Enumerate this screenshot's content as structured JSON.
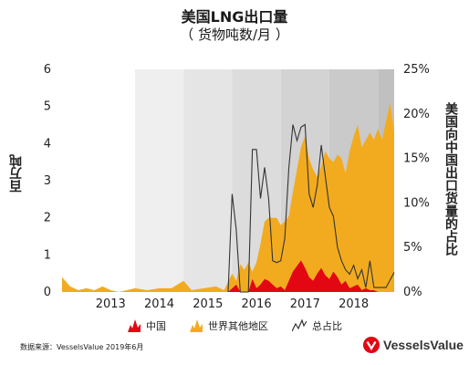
{
  "title": "美国LNG出口量",
  "subtitle": "（ 货物吨数/月 ）",
  "ylabel_left": "百万吨",
  "ylabel_right": "美国向中国出口货量的占比",
  "legend": [
    {
      "label": "中国",
      "color": "#e30613"
    },
    {
      "label": "世界其他地区",
      "color": "#f2ab1f"
    },
    {
      "label": "总占比",
      "color": "#333333"
    }
  ],
  "source": "数据来源：VesselsValue 2019年6月",
  "brand": "VesselsValue",
  "chart_data": {
    "type": "area",
    "x_ticks": [
      "2013",
      "2014",
      "2015",
      "2016",
      "2017",
      "2018"
    ],
    "y_ticks_left": [
      "0",
      "1",
      "2",
      "3",
      "4",
      "5",
      "6"
    ],
    "y_ticks_right": [
      "0%",
      "5%",
      "10%",
      "15%",
      "20%",
      "25%"
    ],
    "ylim_left": [
      0,
      6
    ],
    "ylim_right": [
      0,
      25
    ],
    "x_start": "2012-07",
    "x_end": "2019-05",
    "shaded_years": [
      "2014",
      "2015",
      "2016",
      "2017",
      "2018",
      "2019"
    ],
    "series": [
      {
        "name": "世界其他地区",
        "kind": "area",
        "color": "#f2ab1f",
        "values": [
          {
            "x": "2012-07",
            "y": 0.4
          },
          {
            "x": "2012-09",
            "y": 0.15
          },
          {
            "x": "2012-11",
            "y": 0.05
          },
          {
            "x": "2013-01",
            "y": 0.1
          },
          {
            "x": "2013-03",
            "y": 0.05
          },
          {
            "x": "2013-05",
            "y": 0.15
          },
          {
            "x": "2013-07",
            "y": 0.05
          },
          {
            "x": "2013-09",
            "y": 0.0
          },
          {
            "x": "2013-11",
            "y": 0.05
          },
          {
            "x": "2014-01",
            "y": 0.1
          },
          {
            "x": "2014-04",
            "y": 0.05
          },
          {
            "x": "2014-07",
            "y": 0.1
          },
          {
            "x": "2014-10",
            "y": 0.1
          },
          {
            "x": "2015-01",
            "y": 0.3
          },
          {
            "x": "2015-03",
            "y": 0.05
          },
          {
            "x": "2015-06",
            "y": 0.1
          },
          {
            "x": "2015-09",
            "y": 0.15
          },
          {
            "x": "2015-11",
            "y": 0.05
          },
          {
            "x": "2016-01",
            "y": 0.5
          },
          {
            "x": "2016-02",
            "y": 0.3
          },
          {
            "x": "2016-03",
            "y": 0.75
          },
          {
            "x": "2016-04",
            "y": 0.6
          },
          {
            "x": "2016-05",
            "y": 0.8
          },
          {
            "x": "2016-06",
            "y": 0.55
          },
          {
            "x": "2016-07",
            "y": 0.8
          },
          {
            "x": "2016-08",
            "y": 1.3
          },
          {
            "x": "2016-09",
            "y": 1.9
          },
          {
            "x": "2016-10",
            "y": 2.0
          },
          {
            "x": "2016-11",
            "y": 2.0
          },
          {
            "x": "2016-12",
            "y": 2.0
          },
          {
            "x": "2017-01",
            "y": 1.8
          },
          {
            "x": "2017-02",
            "y": 1.9
          },
          {
            "x": "2017-03",
            "y": 2.05
          },
          {
            "x": "2017-04",
            "y": 2.7
          },
          {
            "x": "2017-05",
            "y": 3.3
          },
          {
            "x": "2017-06",
            "y": 3.9
          },
          {
            "x": "2017-07",
            "y": 4.2
          },
          {
            "x": "2017-08",
            "y": 3.6
          },
          {
            "x": "2017-09",
            "y": 3.3
          },
          {
            "x": "2017-10",
            "y": 3.1
          },
          {
            "x": "2017-11",
            "y": 3.4
          },
          {
            "x": "2017-12",
            "y": 3.8
          },
          {
            "x": "2018-01",
            "y": 3.6
          },
          {
            "x": "2018-02",
            "y": 3.5
          },
          {
            "x": "2018-03",
            "y": 3.7
          },
          {
            "x": "2018-04",
            "y": 3.6
          },
          {
            "x": "2018-05",
            "y": 3.2
          },
          {
            "x": "2018-06",
            "y": 3.8
          },
          {
            "x": "2018-07",
            "y": 4.2
          },
          {
            "x": "2018-08",
            "y": 4.5
          },
          {
            "x": "2018-09",
            "y": 3.9
          },
          {
            "x": "2018-10",
            "y": 4.1
          },
          {
            "x": "2018-11",
            "y": 4.3
          },
          {
            "x": "2018-12",
            "y": 4.1
          },
          {
            "x": "2019-01",
            "y": 4.4
          },
          {
            "x": "2019-02",
            "y": 4.1
          },
          {
            "x": "2019-03",
            "y": 4.6
          },
          {
            "x": "2019-04",
            "y": 5.1
          },
          {
            "x": "2019-05",
            "y": 4.3
          }
        ]
      },
      {
        "name": "中国",
        "kind": "area",
        "color": "#e30613",
        "values": [
          {
            "x": "2012-07",
            "y": 0
          },
          {
            "x": "2015-12",
            "y": 0
          },
          {
            "x": "2016-02",
            "y": 0.2
          },
          {
            "x": "2016-03",
            "y": 0.0
          },
          {
            "x": "2016-05",
            "y": 0.0
          },
          {
            "x": "2016-06",
            "y": 0.35
          },
          {
            "x": "2016-07",
            "y": 0.1
          },
          {
            "x": "2016-08",
            "y": 0.2
          },
          {
            "x": "2016-09",
            "y": 0.35
          },
          {
            "x": "2016-10",
            "y": 0.3
          },
          {
            "x": "2016-11",
            "y": 0.2
          },
          {
            "x": "2016-12",
            "y": 0.1
          },
          {
            "x": "2017-01",
            "y": 0.15
          },
          {
            "x": "2017-02",
            "y": 0.05
          },
          {
            "x": "2017-03",
            "y": 0.3
          },
          {
            "x": "2017-04",
            "y": 0.55
          },
          {
            "x": "2017-05",
            "y": 0.7
          },
          {
            "x": "2017-06",
            "y": 0.85
          },
          {
            "x": "2017-07",
            "y": 0.65
          },
          {
            "x": "2017-08",
            "y": 0.4
          },
          {
            "x": "2017-09",
            "y": 0.3
          },
          {
            "x": "2017-10",
            "y": 0.5
          },
          {
            "x": "2017-11",
            "y": 0.65
          },
          {
            "x": "2017-12",
            "y": 0.45
          },
          {
            "x": "2018-01",
            "y": 0.35
          },
          {
            "x": "2018-02",
            "y": 0.55
          },
          {
            "x": "2018-03",
            "y": 0.4
          },
          {
            "x": "2018-04",
            "y": 0.2
          },
          {
            "x": "2018-05",
            "y": 0.3
          },
          {
            "x": "2018-06",
            "y": 0.1
          },
          {
            "x": "2018-07",
            "y": 0.15
          },
          {
            "x": "2018-08",
            "y": 0.2
          },
          {
            "x": "2018-09",
            "y": 0.05
          },
          {
            "x": "2018-10",
            "y": 0.1
          },
          {
            "x": "2018-11",
            "y": 0.05
          },
          {
            "x": "2018-12",
            "y": 0.05
          },
          {
            "x": "2019-01",
            "y": 0.0
          },
          {
            "x": "2019-05",
            "y": 0.0
          }
        ]
      },
      {
        "name": "总占比",
        "kind": "line",
        "axis": "right",
        "color": "#333333",
        "values": [
          {
            "x": "2015-12",
            "y": 0
          },
          {
            "x": "2016-01",
            "y": 11.0
          },
          {
            "x": "2016-02",
            "y": 7.0
          },
          {
            "x": "2016-03",
            "y": 0
          },
          {
            "x": "2016-05",
            "y": 0
          },
          {
            "x": "2016-06",
            "y": 16.0
          },
          {
            "x": "2016-07",
            "y": 16.0
          },
          {
            "x": "2016-08",
            "y": 10.5
          },
          {
            "x": "2016-09",
            "y": 14.0
          },
          {
            "x": "2016-10",
            "y": 10.5
          },
          {
            "x": "2016-11",
            "y": 3.5
          },
          {
            "x": "2016-12",
            "y": 3.3
          },
          {
            "x": "2017-01",
            "y": 3.5
          },
          {
            "x": "2017-02",
            "y": 6.0
          },
          {
            "x": "2017-03",
            "y": 14.0
          },
          {
            "x": "2017-04",
            "y": 18.8
          },
          {
            "x": "2017-05",
            "y": 17.0
          },
          {
            "x": "2017-06",
            "y": 18.5
          },
          {
            "x": "2017-07",
            "y": 18.8
          },
          {
            "x": "2017-08",
            "y": 11.0
          },
          {
            "x": "2017-09",
            "y": 9.5
          },
          {
            "x": "2017-10",
            "y": 12.0
          },
          {
            "x": "2017-11",
            "y": 16.5
          },
          {
            "x": "2017-12",
            "y": 13.0
          },
          {
            "x": "2018-01",
            "y": 9.5
          },
          {
            "x": "2018-02",
            "y": 8.5
          },
          {
            "x": "2018-03",
            "y": 5.0
          },
          {
            "x": "2018-04",
            "y": 3.5
          },
          {
            "x": "2018-05",
            "y": 2.5
          },
          {
            "x": "2018-06",
            "y": 2.0
          },
          {
            "x": "2018-07",
            "y": 3.0
          },
          {
            "x": "2018-08",
            "y": 1.5
          },
          {
            "x": "2018-09",
            "y": 2.5
          },
          {
            "x": "2018-10",
            "y": 0.5
          },
          {
            "x": "2018-11",
            "y": 3.5
          },
          {
            "x": "2018-12",
            "y": 0.5
          },
          {
            "x": "2019-01",
            "y": 0.5
          },
          {
            "x": "2019-03",
            "y": 0.5
          },
          {
            "x": "2019-05",
            "y": 2.2
          }
        ]
      }
    ]
  }
}
